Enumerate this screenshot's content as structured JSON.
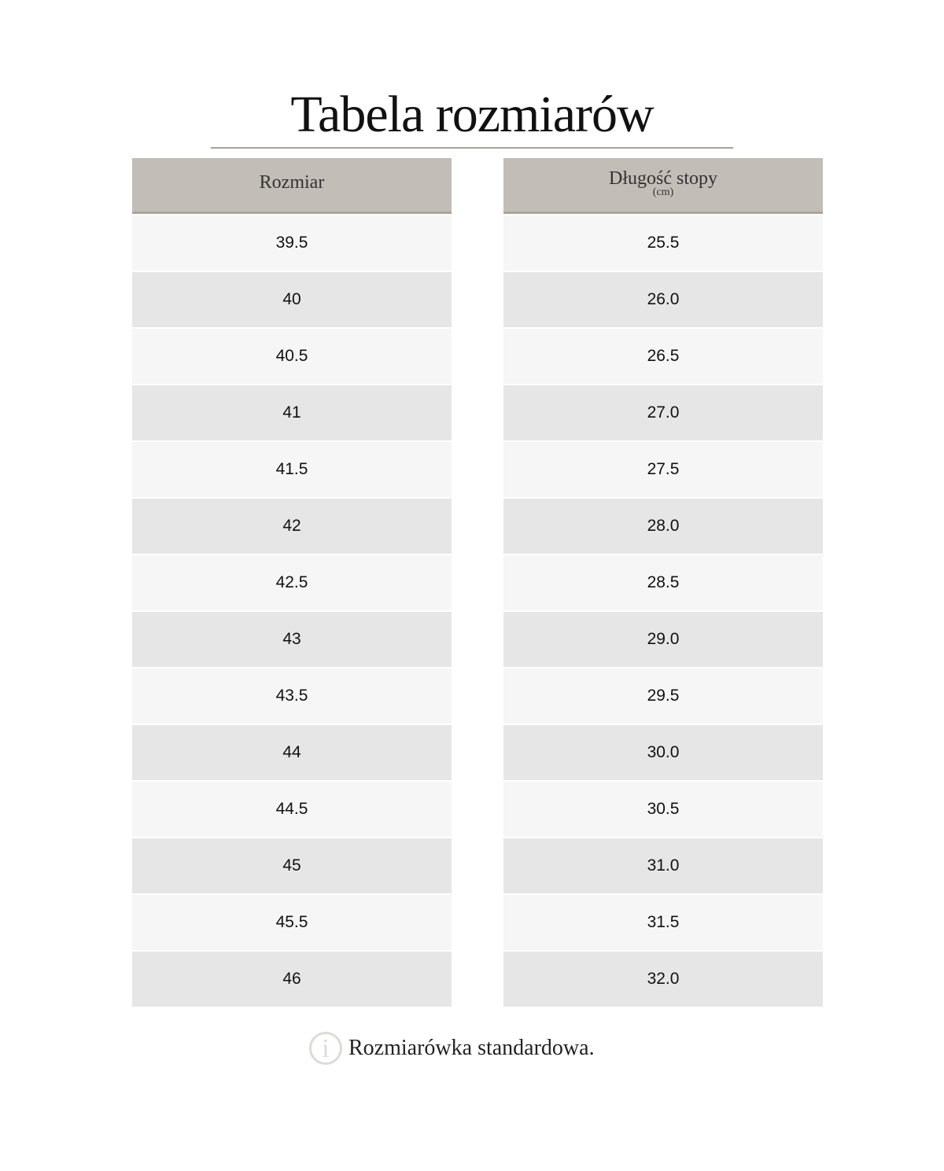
{
  "title": "Tabela rozmiarów",
  "table": {
    "headers": {
      "size": "Rozmiar",
      "length": "Długość stopy",
      "length_unit": "(cm)"
    },
    "rows": [
      {
        "size": "39.5",
        "length": "25.5"
      },
      {
        "size": "40",
        "length": "26.0"
      },
      {
        "size": "40.5",
        "length": "26.5"
      },
      {
        "size": "41",
        "length": "27.0"
      },
      {
        "size": "41.5",
        "length": "27.5"
      },
      {
        "size": "42",
        "length": "28.0"
      },
      {
        "size": "42.5",
        "length": "28.5"
      },
      {
        "size": "43",
        "length": "29.0"
      },
      {
        "size": "43.5",
        "length": "29.5"
      },
      {
        "size": "44",
        "length": "30.0"
      },
      {
        "size": "44.5",
        "length": "30.5"
      },
      {
        "size": "45",
        "length": "31.0"
      },
      {
        "size": "45.5",
        "length": "31.5"
      },
      {
        "size": "46",
        "length": "32.0"
      }
    ]
  },
  "note": {
    "icon": "info-icon",
    "text": "Rozmiarówka standardowa."
  },
  "colors": {
    "header": "#c2bdb6",
    "row_light": "#f6f6f6",
    "row_dark": "#e6e6e6"
  }
}
